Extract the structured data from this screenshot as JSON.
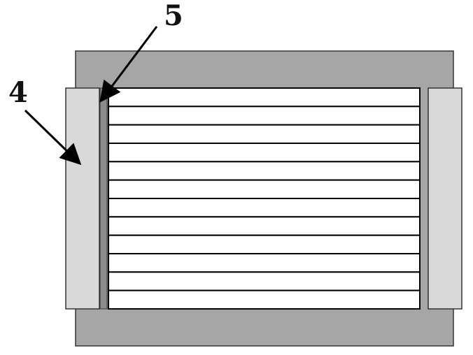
{
  "callouts": [
    {
      "id": "4",
      "text": "4"
    },
    {
      "id": "5",
      "text": "5"
    }
  ],
  "colors": {
    "background": "#ffffff",
    "housing": "#a6a6a6",
    "side_block": "#d9d9d9",
    "stack_fill": "#ffffff",
    "stack_lines": "#000000",
    "arrow": "#000000"
  },
  "stack": {
    "strip_count": 12
  }
}
